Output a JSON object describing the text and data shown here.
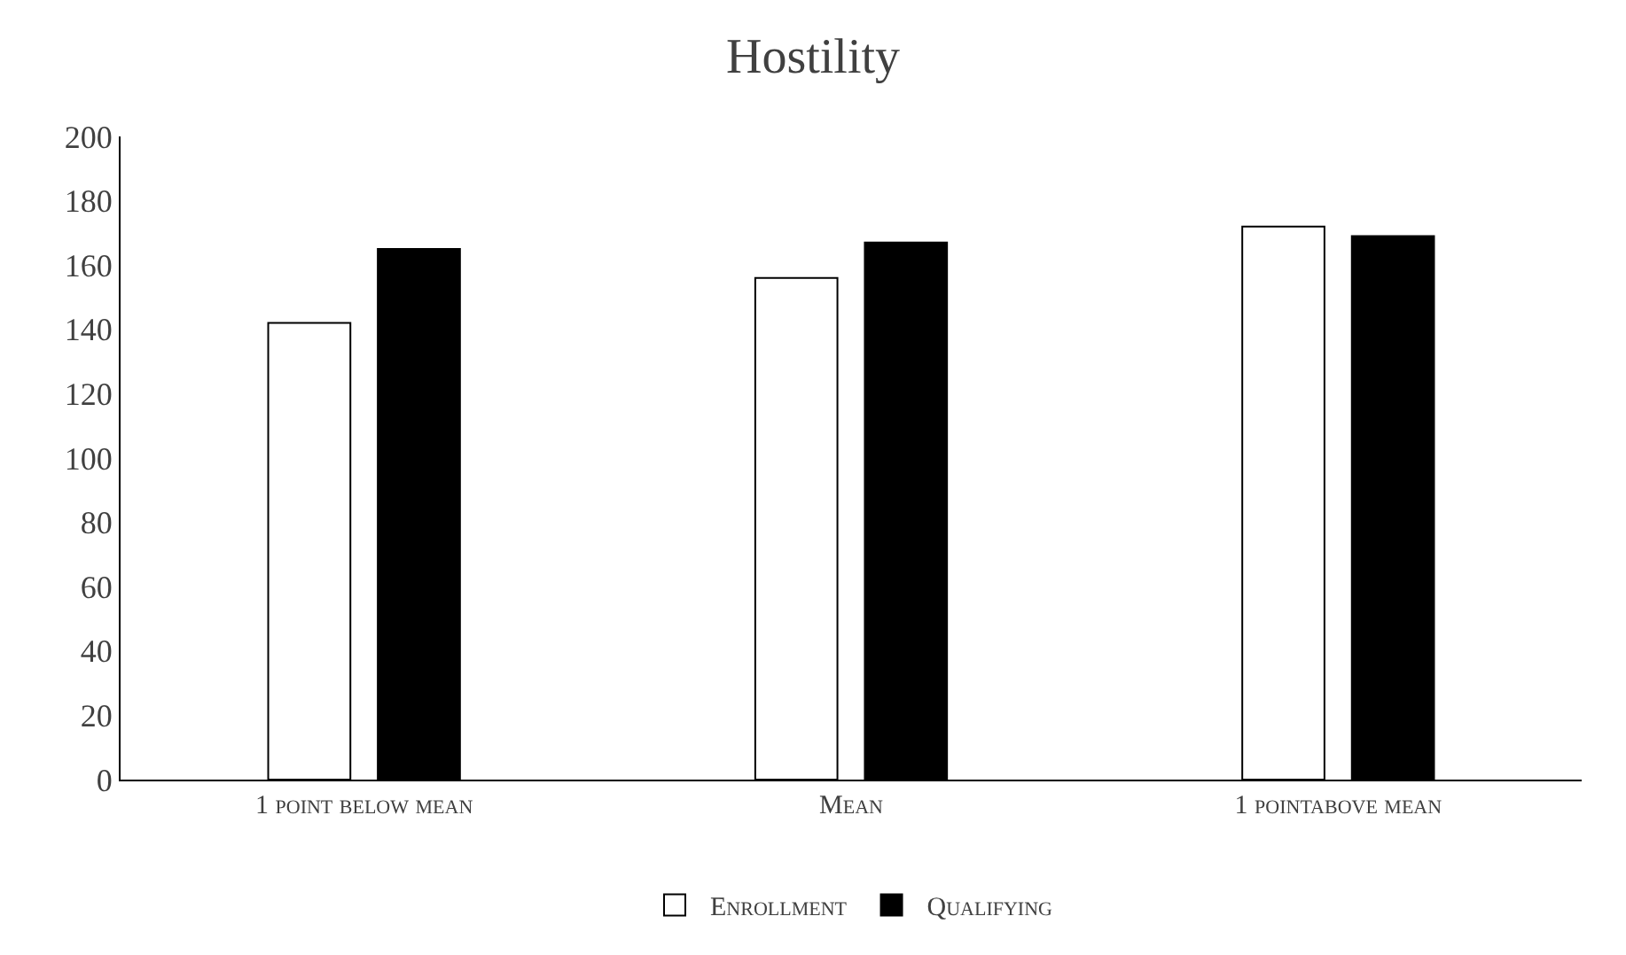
{
  "chart_data": {
    "type": "bar",
    "title": "Hostility",
    "categories": [
      "1 point below mean",
      "Mean",
      "1 pointabove mean"
    ],
    "series": [
      {
        "name": "Enrollment",
        "color": "#ffffff",
        "values": [
          142,
          156,
          172
        ]
      },
      {
        "name": "Qualifying",
        "color": "#000000",
        "values": [
          165,
          167,
          169
        ]
      }
    ],
    "ylim": [
      0,
      200
    ],
    "yticks": [
      0,
      20,
      40,
      60,
      80,
      100,
      120,
      140,
      160,
      180,
      200
    ],
    "grid": false,
    "legend": "bottom"
  }
}
